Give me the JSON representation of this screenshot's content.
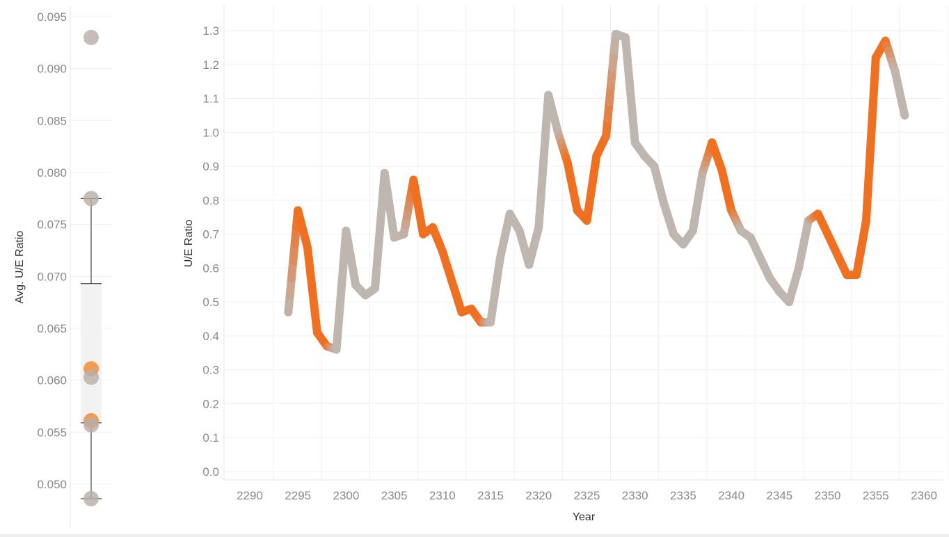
{
  "colors": {
    "highlight": "#F07022",
    "highlight_dot": "#F0892F",
    "base": "#BEB6AF",
    "base_dot": "#B9AFA9",
    "grid": "#F0F0F0",
    "axis_line": "#E6E6E6",
    "tick_text": "#8A8A8A",
    "title_text": "#333333",
    "whisker": "#222222",
    "box_fill": "#F2F2F2"
  },
  "chart_data": [
    {
      "type": "scatter",
      "subtype": "box-plot",
      "ylabel": "Avg. U/E Ratio",
      "xlabel": "",
      "ylim": [
        0.0475,
        0.0955
      ],
      "yticks": [
        "0.050",
        "0.055",
        "0.060",
        "0.065",
        "0.070",
        "0.075",
        "0.080",
        "0.085",
        "0.090",
        "0.095"
      ],
      "grid": true,
      "points": [
        {
          "value": 0.093,
          "group": "base"
        },
        {
          "value": 0.0775,
          "group": "base"
        },
        {
          "value": 0.0611,
          "group": "highlight"
        },
        {
          "value": 0.0603,
          "group": "base"
        },
        {
          "value": 0.0561,
          "group": "highlight"
        },
        {
          "value": 0.0557,
          "group": "base"
        },
        {
          "value": 0.0486,
          "group": "base"
        }
      ],
      "box": {
        "whisker_high": 0.0775,
        "q3": 0.0693,
        "q1": 0.0559,
        "whisker_low": 0.0486
      }
    },
    {
      "type": "line",
      "xlabel": "Year",
      "ylabel": "U/E Ratio",
      "xlim": [
        2287,
        2362
      ],
      "ylim": [
        -0.03,
        1.37
      ],
      "xticks": [
        "2290",
        "2295",
        "2300",
        "2305",
        "2310",
        "2315",
        "2320",
        "2325",
        "2330",
        "2335",
        "2340",
        "2345",
        "2350",
        "2355",
        "2360"
      ],
      "yticks": [
        "0.0",
        "0.1",
        "0.2",
        "0.3",
        "0.4",
        "0.5",
        "0.6",
        "0.7",
        "0.8",
        "0.9",
        "1.0",
        "1.1",
        "1.2",
        "1.3"
      ],
      "grid": true,
      "x": [
        2294,
        2295,
        2296,
        2297,
        2298,
        2299,
        2300,
        2301,
        2302,
        2303,
        2304,
        2305,
        2306,
        2307,
        2308,
        2309,
        2310,
        2311,
        2312,
        2313,
        2314,
        2315,
        2316,
        2317,
        2318,
        2319,
        2320,
        2321,
        2322,
        2323,
        2324,
        2325,
        2326,
        2327,
        2328,
        2329,
        2330,
        2331,
        2332,
        2333,
        2334,
        2335,
        2336,
        2337,
        2338,
        2339,
        2340,
        2341,
        2342,
        2343,
        2344,
        2345,
        2346,
        2347,
        2348,
        2349,
        2350,
        2351,
        2352,
        2353,
        2354,
        2355,
        2356,
        2357,
        2358
      ],
      "y": [
        0.47,
        0.77,
        0.66,
        0.41,
        0.37,
        0.36,
        0.71,
        0.55,
        0.52,
        0.54,
        0.88,
        0.69,
        0.7,
        0.86,
        0.7,
        0.72,
        0.65,
        0.56,
        0.47,
        0.48,
        0.44,
        0.44,
        0.63,
        0.76,
        0.71,
        0.61,
        0.72,
        1.11,
        1.0,
        0.91,
        0.77,
        0.74,
        0.93,
        0.99,
        1.29,
        1.28,
        0.97,
        0.93,
        0.9,
        0.79,
        0.7,
        0.67,
        0.71,
        0.88,
        0.97,
        0.89,
        0.77,
        0.71,
        0.69,
        0.63,
        0.57,
        0.53,
        0.5,
        0.6,
        0.74,
        0.76,
        0.7,
        0.64,
        0.58,
        0.58,
        0.74,
        1.22,
        1.27,
        1.18,
        1.05
      ],
      "highlight": [
        0,
        1,
        1,
        1,
        1,
        0,
        0,
        0,
        0,
        0,
        0,
        0,
        0,
        1,
        1,
        1,
        1,
        1,
        1,
        1,
        1,
        0,
        0,
        0,
        0,
        0,
        0,
        0,
        0,
        1,
        1,
        1,
        1,
        1,
        0,
        0,
        0,
        0,
        0,
        0,
        0,
        0,
        0,
        0,
        1,
        1,
        1,
        0,
        0,
        0,
        0,
        0,
        0,
        0,
        0,
        1,
        1,
        1,
        1,
        1,
        1,
        1,
        1,
        0,
        0
      ]
    }
  ]
}
